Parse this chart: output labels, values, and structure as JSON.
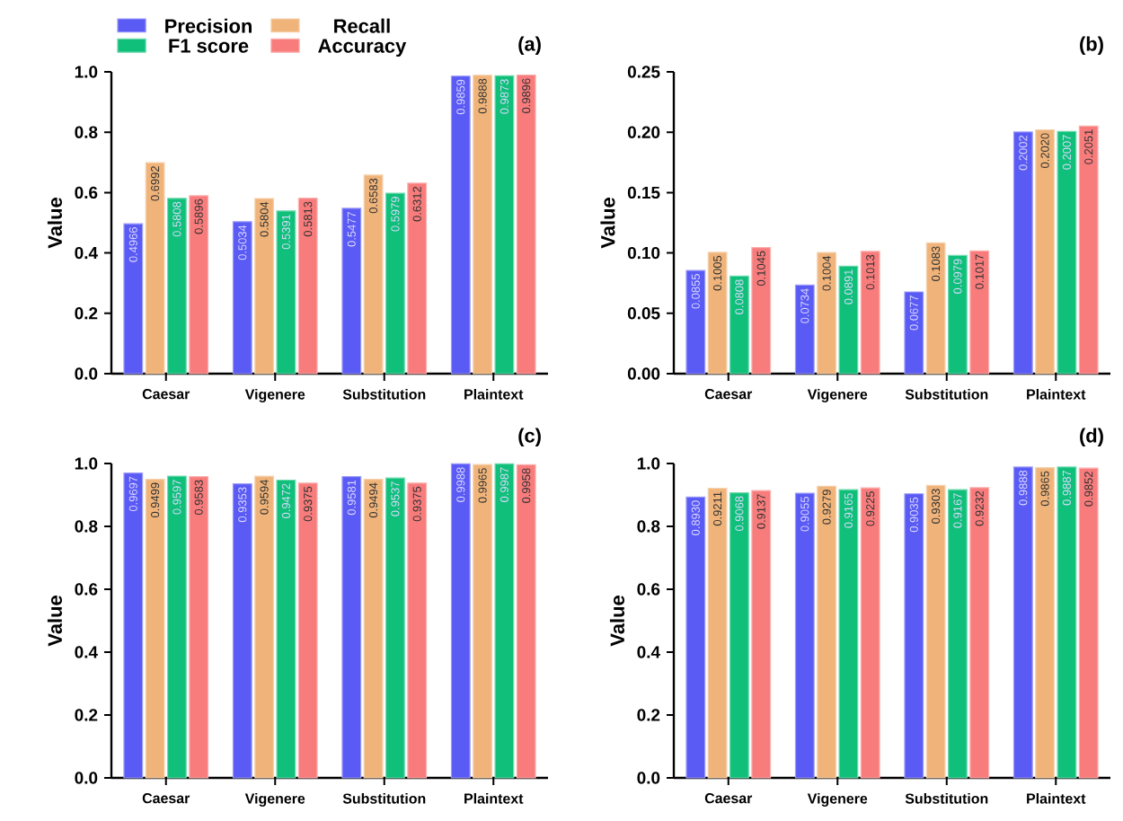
{
  "chart_data": [
    {
      "type": "bar",
      "title": "(a)",
      "ylabel": "Value",
      "categories": [
        "Caesar",
        "Vigenere",
        "Substitution",
        "Plaintext"
      ],
      "legend": "top left",
      "ylim": [
        0,
        1.0
      ],
      "yticks": [
        {
          "value": 0,
          "label": "0.0"
        },
        {
          "value": 0.2,
          "label": "0.2"
        },
        {
          "value": 0.4,
          "label": "0.4"
        },
        {
          "value": 0.6,
          "label": "0.6"
        },
        {
          "value": 0.8,
          "label": "0.8"
        },
        {
          "value": 1.0,
          "label": "1.0"
        }
      ],
      "series": [
        {
          "name": "Precision",
          "color": "#5a5af5",
          "values": [
            0.4966,
            0.5034,
            0.5477,
            0.9859
          ],
          "value_labels": [
            "0.4966",
            "0.5034",
            "0.5477",
            "0.9859"
          ]
        },
        {
          "name": "Recall",
          "color": "#f0b47a",
          "values": [
            0.6992,
            0.5804,
            0.6583,
            0.9888
          ],
          "value_labels": [
            "0.6992",
            "0.5804",
            "0.6583",
            "0.9888"
          ]
        },
        {
          "name": "F1 score",
          "color": "#10c07a",
          "values": [
            0.5808,
            0.5391,
            0.5979,
            0.9873
          ],
          "value_labels": [
            "0.5808",
            "0.5391",
            "0.5979",
            "0.9873"
          ]
        },
        {
          "name": "Accuracy",
          "color": "#f87c7c",
          "values": [
            0.5896,
            0.5813,
            0.6312,
            0.9896
          ],
          "value_labels": [
            "0.5896",
            "0.5813",
            "0.6312",
            "0.9896"
          ]
        }
      ]
    },
    {
      "type": "bar",
      "title": "(b)",
      "ylabel": "Value",
      "categories": [
        "Caesar",
        "Vigenere",
        "Substitution",
        "Plaintext"
      ],
      "ylim": [
        0,
        0.25
      ],
      "yticks": [
        {
          "value": 0,
          "label": "0.00"
        },
        {
          "value": 0.05,
          "label": "0.05"
        },
        {
          "value": 0.1,
          "label": "0.10"
        },
        {
          "value": 0.15,
          "label": "0.15"
        },
        {
          "value": 0.2,
          "label": "0.20"
        },
        {
          "value": 0.25,
          "label": "0.25"
        }
      ],
      "series": [
        {
          "color": "#5a5af5",
          "values": [
            0.0855,
            0.0734,
            0.0677,
            0.2002
          ],
          "value_labels": [
            "0.0855",
            "0.0734",
            "0.0677",
            "0.2002"
          ]
        },
        {
          "color": "#f0b47a",
          "values": [
            0.1005,
            0.1004,
            0.1083,
            0.202
          ],
          "value_labels": [
            "0.1005",
            "0.1004",
            "0.1083",
            "0.2020"
          ]
        },
        {
          "color": "#10c07a",
          "values": [
            0.0808,
            0.0891,
            0.0979,
            0.2007
          ],
          "value_labels": [
            "0.0808",
            "0.0891",
            "0.0979",
            "0.2007"
          ]
        },
        {
          "color": "#f87c7c",
          "values": [
            0.1045,
            0.1013,
            0.1017,
            0.2051
          ],
          "value_labels": [
            "0.1045",
            "0.1013",
            "0.1017",
            "0.2051"
          ]
        }
      ]
    },
    {
      "type": "bar",
      "title": "(c)",
      "ylabel": "Value",
      "categories": [
        "Caesar",
        "Vigenere",
        "Substitution",
        "Plaintext"
      ],
      "ylim": [
        0,
        1.0
      ],
      "yticks": [
        {
          "value": 0,
          "label": "0.0"
        },
        {
          "value": 0.2,
          "label": "0.2"
        },
        {
          "value": 0.4,
          "label": "0.4"
        },
        {
          "value": 0.6,
          "label": "0.6"
        },
        {
          "value": 0.8,
          "label": "0.8"
        },
        {
          "value": 1.0,
          "label": "1.0"
        }
      ],
      "series": [
        {
          "color": "#5a5af5",
          "values": [
            0.9697,
            0.9353,
            0.9581,
            0.9988
          ],
          "value_labels": [
            "0.9697",
            "0.9353",
            "0.9581",
            "0.9988"
          ]
        },
        {
          "color": "#f0b47a",
          "values": [
            0.9499,
            0.9594,
            0.9494,
            0.9965
          ],
          "value_labels": [
            "0.9499",
            "0.9594",
            "0.9494",
            "0.9965"
          ]
        },
        {
          "color": "#10c07a",
          "values": [
            0.9597,
            0.9472,
            0.9537,
            0.9987
          ],
          "value_labels": [
            "0.9597",
            "0.9472",
            "0.9537",
            "0.9987"
          ]
        },
        {
          "color": "#f87c7c",
          "values": [
            0.9583,
            0.9375,
            0.9375,
            0.9958
          ],
          "value_labels": [
            "0.9583",
            "0.9375",
            "0.9375",
            "0.9958"
          ]
        }
      ]
    },
    {
      "type": "bar",
      "title": "(d)",
      "ylabel": "Value",
      "categories": [
        "Caesar",
        "Vigenere",
        "Substitution",
        "Plaintext"
      ],
      "ylim": [
        0,
        1.0
      ],
      "yticks": [
        {
          "value": 0,
          "label": "0.0"
        },
        {
          "value": 0.2,
          "label": "0.2"
        },
        {
          "value": 0.4,
          "label": "0.4"
        },
        {
          "value": 0.6,
          "label": "0.6"
        },
        {
          "value": 0.8,
          "label": "0.8"
        },
        {
          "value": 1.0,
          "label": "1.0"
        }
      ],
      "series": [
        {
          "color": "#5a5af5",
          "values": [
            0.893,
            0.9055,
            0.9035,
            0.9888
          ],
          "value_labels": [
            "0.8930",
            "0.9055",
            "0.9035",
            "0.9888"
          ]
        },
        {
          "color": "#f0b47a",
          "values": [
            0.9211,
            0.9279,
            0.9303,
            0.9865
          ],
          "value_labels": [
            "0.9211",
            "0.9279",
            "0.9303",
            "0.9865"
          ]
        },
        {
          "color": "#10c07a",
          "values": [
            0.9068,
            0.9165,
            0.9167,
            0.9887
          ],
          "value_labels": [
            "0.9068",
            "0.9165",
            "0.9167",
            "0.9887"
          ]
        },
        {
          "color": "#f87c7c",
          "values": [
            0.9137,
            0.9225,
            0.9232,
            0.9852
          ],
          "value_labels": [
            "0.9137",
            "0.9225",
            "0.9232",
            "0.9852"
          ]
        }
      ]
    }
  ]
}
